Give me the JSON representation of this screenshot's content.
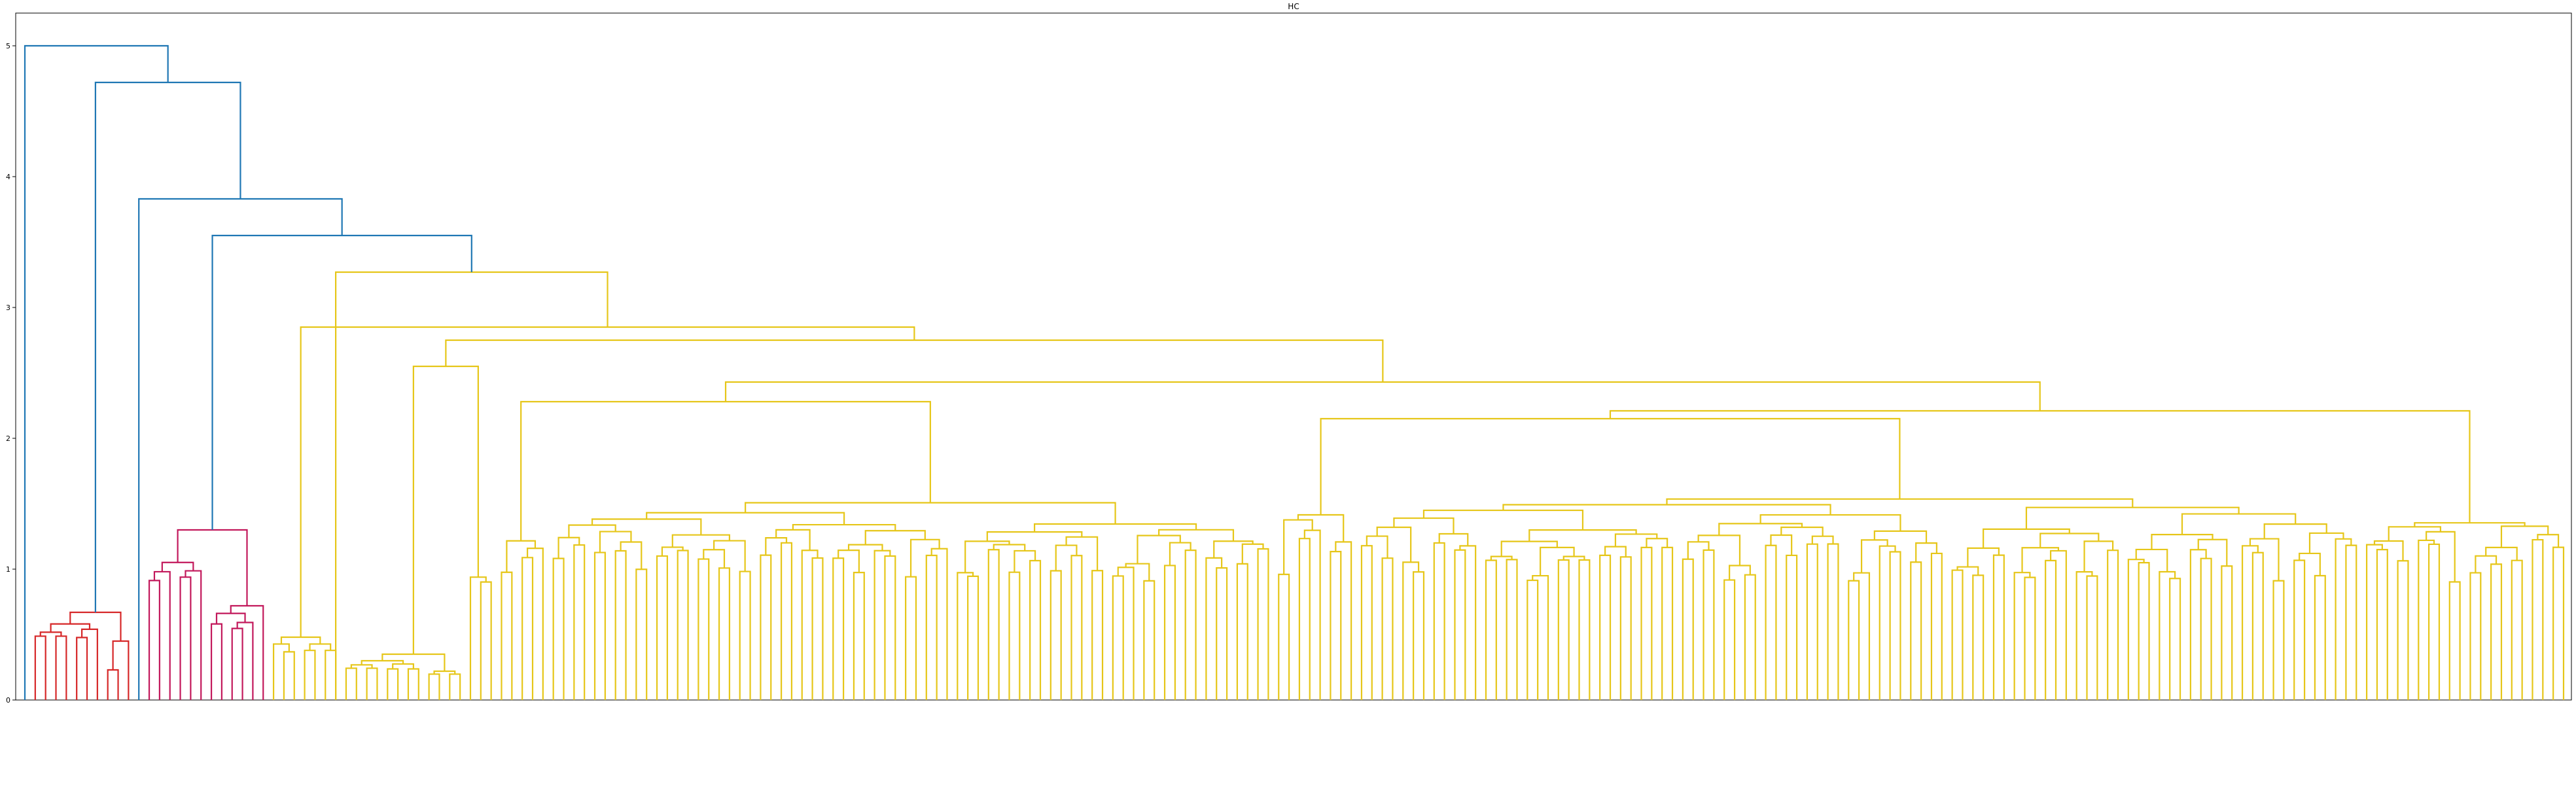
{
  "chart_data": {
    "type": "dendrogram",
    "title": "HC",
    "xlabel": "",
    "ylabel": "",
    "ylim": [
      0,
      5.25
    ],
    "yticks": [
      0,
      1,
      2,
      3,
      4,
      5
    ],
    "grid": false,
    "legend": "none",
    "leaf_count": 246,
    "colors": {
      "above_threshold": "#1f77b4",
      "cluster_red": "#d62728",
      "cluster_magenta": "#c2185b",
      "cluster_yellow": "#e6c619"
    },
    "merge_heights": {
      "root": 5.0,
      "second": 4.72,
      "third": 3.83,
      "fourth": 3.55,
      "red_cluster": 0.67,
      "red_sub": 0.23,
      "magenta_cluster": 1.3,
      "magenta_sub": 0.72,
      "yellow_cluster": 3.27,
      "yellow_sub_a": 2.85,
      "yellow_sub_b": 2.75,
      "yellow_sub_c": 2.47,
      "yellow_sub_d": 2.43,
      "yellow_sub_e": 2.21,
      "yellow_sub_f": 2.15,
      "yellow_sub_g": 2.08,
      "yellow_sub_h": 1.97
    }
  }
}
